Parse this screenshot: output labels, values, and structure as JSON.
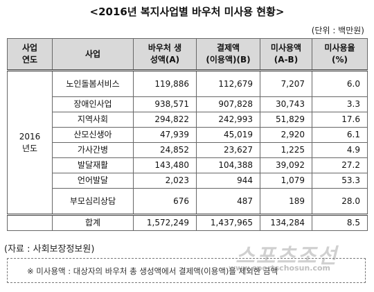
{
  "header": {
    "title": "<2016년 복지사업별 바우처 미사용 현황>",
    "unit": "(단위 : 백만원)"
  },
  "table": {
    "columns": [
      [
        "사업",
        "연도"
      ],
      [
        "사업"
      ],
      [
        "바우처 생",
        "성액(A)"
      ],
      [
        "결제액",
        "(이용액)(B)"
      ],
      [
        "미사용액",
        "(A-B)"
      ],
      [
        "미사용율",
        "(%)"
      ]
    ],
    "year": "2016년도",
    "rows": [
      [
        "노인돌봄서비스",
        "119,886",
        "112,679",
        "7,207",
        "6.0"
      ],
      [
        "장애인사업",
        "938,571",
        "907,828",
        "30,743",
        "3.3"
      ],
      [
        "지역사회",
        "294,822",
        "242,993",
        "51,829",
        "17.6"
      ],
      [
        "산모신생아",
        "47,939",
        "45,019",
        "2,920",
        "6.1"
      ],
      [
        "가사간병",
        "24,852",
        "23,627",
        "1,225",
        "4.9"
      ],
      [
        "발달재활",
        "143,480",
        "104,388",
        "39,092",
        "27.2"
      ],
      [
        "언어발달",
        "2,023",
        "944",
        "1,079",
        "53.3"
      ],
      [
        "부모심리상담",
        "676",
        "487",
        "189",
        "28.0"
      ]
    ],
    "total": [
      "합계",
      "1,572,249",
      "1,437,965",
      "134,284",
      "8.5"
    ]
  },
  "source": "(자료 : 사회보장정보원)",
  "note": "※ 미사용액 : 대상자의 바우처 총 생성액에서 결제액(이용액)을 제외한 금액",
  "watermark": {
    "logo": "스포츠조선",
    "url": "www.sportschosun.com"
  }
}
